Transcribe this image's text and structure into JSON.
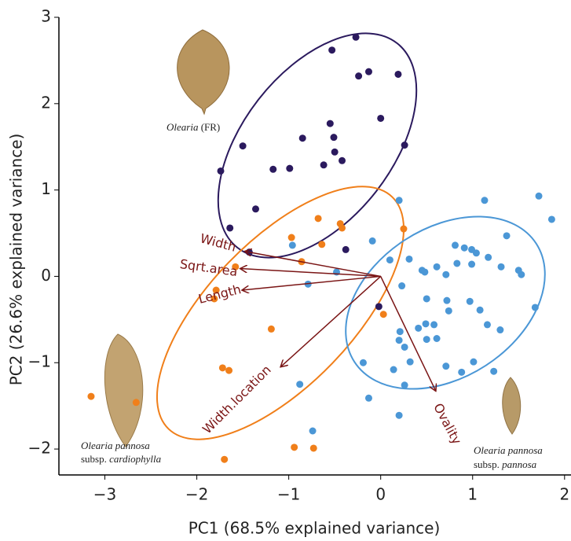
{
  "chart_data": {
    "type": "scatter",
    "x_label": "PC1 (68.5% explained variance)",
    "y_label": "PC2 (26.6% explained variance)",
    "xlim": [
      -3.5,
      2.07
    ],
    "ylim": [
      -2.3,
      3
    ],
    "xticks": [
      {
        "value": -3,
        "label": "−3"
      },
      {
        "value": -2,
        "label": "−2"
      },
      {
        "value": -1,
        "label": "−1"
      },
      0,
      1,
      2
    ],
    "yticks": [
      {
        "value": -2,
        "label": "−2"
      },
      {
        "value": -1,
        "label": "−1"
      },
      0,
      1,
      2,
      3
    ],
    "series": [
      {
        "color": "#2b1a5e",
        "x": [
          -0.27,
          -0.53,
          -0.13,
          -0.24,
          0.19,
          -0.55,
          -0.85,
          -0.51,
          0.0,
          -0.5,
          0.26,
          -1.5,
          -1.74,
          -1.17,
          -0.99,
          -0.62,
          -0.42,
          -1.36,
          -1.64,
          -1.43,
          -0.38,
          -0.02
        ],
        "values": [
          2.77,
          2.62,
          2.37,
          2.32,
          2.34,
          1.77,
          1.6,
          1.61,
          1.83,
          1.44,
          1.52,
          1.51,
          1.22,
          1.24,
          1.25,
          1.29,
          1.34,
          0.78,
          0.56,
          0.28,
          0.31,
          -0.35
        ]
      },
      {
        "color": "#f07f1a",
        "x": [
          -0.68,
          -0.44,
          -0.42,
          -0.97,
          -0.86,
          -0.64,
          -1.58,
          -1.81,
          -1.79,
          -1.19,
          -1.72,
          -1.65,
          -3.15,
          -2.66,
          -1.7,
          -0.94,
          -0.73,
          0.25,
          0.03
        ],
        "values": [
          0.67,
          0.61,
          0.56,
          0.45,
          0.17,
          0.37,
          0.11,
          -0.26,
          -0.16,
          -0.61,
          -1.06,
          -1.09,
          -1.39,
          -1.46,
          -2.12,
          -1.98,
          -1.99,
          0.55,
          -0.44
        ]
      },
      {
        "color": "#4b97d6",
        "x": [
          1.72,
          1.13,
          1.37,
          0.81,
          0.91,
          0.99,
          1.04,
          1.17,
          0.1,
          0.31,
          0.45,
          0.48,
          0.23,
          0.71,
          0.83,
          0.99,
          0.61,
          1.31,
          1.5,
          1.53,
          1.86,
          1.68,
          1.3,
          1.16,
          0.5,
          0.72,
          0.74,
          0.97,
          1.08,
          0.58,
          0.49,
          0.5,
          0.61,
          0.21,
          0.2,
          0.26,
          0.32,
          0.41,
          0.26,
          0.71,
          0.88,
          1.01,
          1.23,
          -0.19,
          0.14,
          -0.13,
          -0.88,
          0.2,
          -0.74,
          -0.96,
          -0.79,
          -0.48,
          -0.09,
          0.2
        ],
        "values": [
          0.93,
          0.88,
          0.47,
          0.36,
          0.33,
          0.31,
          0.27,
          0.22,
          0.19,
          0.2,
          0.07,
          0.05,
          -0.11,
          0.02,
          0.15,
          0.14,
          0.11,
          0.11,
          0.07,
          0.02,
          0.66,
          -0.36,
          -0.62,
          -0.56,
          -0.26,
          -0.28,
          -0.4,
          -0.29,
          -0.39,
          -0.56,
          -0.55,
          -0.73,
          -0.72,
          -0.64,
          -0.74,
          -0.82,
          -0.99,
          -0.6,
          -1.26,
          -1.04,
          -1.11,
          -0.99,
          -1.1,
          -1.0,
          -1.08,
          -1.41,
          -1.25,
          -1.61,
          -1.79,
          0.36,
          -0.09,
          0.05,
          0.41,
          0.88
        ]
      }
    ],
    "loadings": [
      {
        "name": "Width",
        "x": -1.48,
        "y": 0.29
      },
      {
        "name": "Sqrt.area",
        "x": -1.53,
        "y": 0.09
      },
      {
        "name": "Length",
        "x": -1.51,
        "y": -0.16
      },
      {
        "name": "Width.location",
        "x": -1.09,
        "y": -1.05
      },
      {
        "name": "Ovality",
        "x": 0.6,
        "y": -1.33
      }
    ],
    "annotations": [
      {
        "genus": "Olearia",
        "rest": " (FR)"
      },
      {
        "species": "Olearia pannosa",
        "subsp": "subsp. ",
        "subsp_name": "cardiophylla"
      },
      {
        "species": "Olearia pannosa",
        "subsp": "subsp. ",
        "subsp_name": "pannosa"
      }
    ]
  }
}
